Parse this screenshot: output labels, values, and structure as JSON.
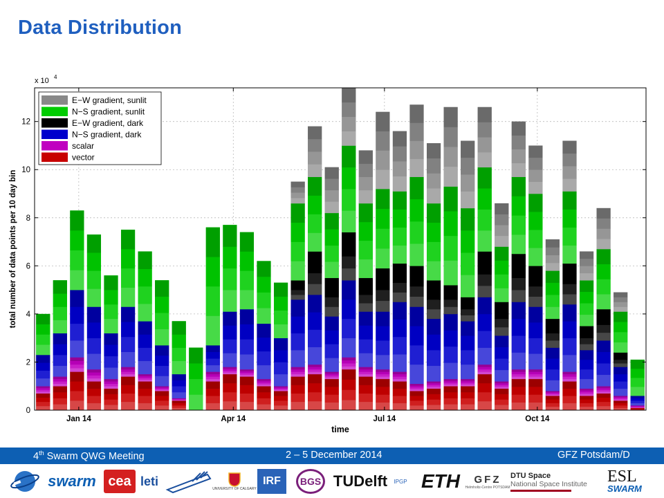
{
  "slide": {
    "title": "Data Distribution"
  },
  "footer": {
    "meeting_ord": "4",
    "meeting_sup": "th",
    "meeting_rest": " Swarm QWG Meeting",
    "dates": "2 – 5 December 2014",
    "location": "GFZ Potsdam/D"
  },
  "logos": {
    "swarm": "swarm",
    "cea": "cea",
    "leti": "leti",
    "calgary": "UNIVERSITY OF CALGARY",
    "irf": "IRF",
    "bgs": "BGS",
    "tudelft": "TUDelft",
    "ipgp": "IPGP",
    "eth": "ETH",
    "gfz": "GFZ",
    "gfz_sub": "Helmholtz-Centre POTSDAM",
    "dtu": "DTU Space",
    "dtu_sub": "National Space Institute",
    "esl": "ESL",
    "esl_sub": "SWARM"
  },
  "colors": {
    "title": "#1f5fbf",
    "footer_bar": "#0d5fb3"
  },
  "chart_data": {
    "type": "bar",
    "stacked": true,
    "xlabel": "time",
    "ylabel": "total number of data points per 10 day bin",
    "y_multiplier": "x 10",
    "y_multiplier_exp": "4",
    "ylim": [
      0,
      13.4
    ],
    "y_ticks": [
      0,
      2,
      4,
      6,
      8,
      10,
      12
    ],
    "x_ticks": [
      {
        "label": "Jan 14",
        "bar": 2.6
      },
      {
        "label": "Apr 14",
        "bar": 11.7
      },
      {
        "label": "Jul 14",
        "bar": 20.6
      },
      {
        "label": "Oct 14",
        "bar": 29.6
      }
    ],
    "grid": true,
    "legend_position": "top-left",
    "series": [
      {
        "name": "vector",
        "color": "#c80000",
        "values": [
          0.7,
          1.0,
          1.6,
          1.2,
          0.9,
          1.4,
          1.2,
          0.8,
          0.4,
          0,
          1.2,
          1.5,
          1.4,
          1.0,
          0.8,
          1.4,
          1.5,
          1.3,
          1.7,
          1.4,
          1.3,
          1.2,
          0.8,
          0.9,
          1.0,
          1.0,
          1.5,
          0.9,
          1.3,
          1.3,
          0.6,
          1.2,
          0.6,
          0.7,
          0.4,
          0.1
        ]
      },
      {
        "name": "scalar",
        "color": "#c000c0",
        "values": [
          0.3,
          0.4,
          0.6,
          0.5,
          0.4,
          0.4,
          0.3,
          0.2,
          0.1,
          0,
          0.4,
          0.3,
          0.3,
          0.3,
          0.2,
          0.4,
          0.4,
          0.3,
          0.5,
          0.4,
          0.4,
          0.4,
          0.3,
          0.3,
          0.3,
          0.3,
          0.4,
          0.3,
          0.4,
          0.4,
          0.2,
          0.4,
          0.3,
          0.3,
          0.2,
          0.1
        ]
      },
      {
        "name": "N−S gradient, dark",
        "color": "#0000cc",
        "values": [
          1.3,
          1.8,
          2.8,
          2.6,
          1.9,
          2.5,
          2.2,
          1.7,
          1.0,
          0,
          1.1,
          2.3,
          2.5,
          2.3,
          2.0,
          2.8,
          2.9,
          2.3,
          3.2,
          2.3,
          2.4,
          2.9,
          3.2,
          2.6,
          2.7,
          2.4,
          2.8,
          1.9,
          2.8,
          2.6,
          1.8,
          2.8,
          1.6,
          1.9,
          1.2,
          0.4
        ]
      },
      {
        "name": "E−W gradient, dark",
        "color": "#000000",
        "values": [
          0,
          0,
          0,
          0,
          0,
          0,
          0,
          0,
          0,
          0,
          0,
          0,
          0,
          0,
          0,
          0.8,
          1.8,
          1.6,
          2.0,
          1.4,
          1.8,
          1.6,
          1.7,
          1.6,
          1.2,
          1.0,
          1.9,
          1.4,
          2.0,
          1.7,
          1.2,
          1.7,
          1.0,
          1.3,
          0.6,
          0
        ]
      },
      {
        "name": "N−S gradient, sunlit",
        "color": "#00cc00",
        "values": [
          1.7,
          2.2,
          3.3,
          3.0,
          2.4,
          3.2,
          2.9,
          2.7,
          2.2,
          2.6,
          4.9,
          3.6,
          3.2,
          2.6,
          2.3,
          3.2,
          3.1,
          2.7,
          3.6,
          3.1,
          3.3,
          3.0,
          3.7,
          3.2,
          4.1,
          3.7,
          3.5,
          2.3,
          3.2,
          3.0,
          2.0,
          3.0,
          1.9,
          2.5,
          1.7,
          1.5
        ]
      },
      {
        "name": "E−W gradient, sunlit",
        "color": "#888888",
        "values": [
          0,
          0,
          0,
          0,
          0,
          0,
          0,
          0,
          0,
          0,
          0,
          0,
          0,
          0,
          0,
          0.9,
          2.1,
          1.9,
          2.4,
          2.2,
          3.2,
          2.5,
          3.0,
          2.5,
          3.3,
          2.8,
          2.5,
          1.8,
          2.3,
          2.0,
          1.3,
          2.1,
          1.2,
          1.7,
          0.8,
          0
        ]
      }
    ]
  }
}
